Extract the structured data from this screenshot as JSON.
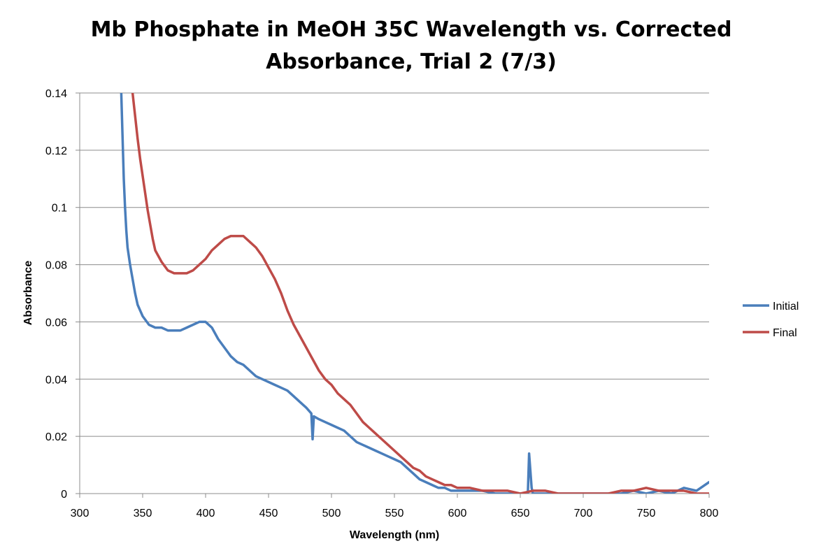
{
  "chart_data": {
    "type": "line",
    "title_lines": [
      "Mb Phosphate in MeOH 35C Wavelength vs. Corrected",
      "Absorbance, Trial 2 (7/3)"
    ],
    "xlabel": "Wavelength (nm)",
    "ylabel": "Absorbance",
    "xlim": [
      300,
      800
    ],
    "ylim": [
      0,
      0.14
    ],
    "x_ticks": [
      300,
      350,
      400,
      450,
      500,
      550,
      600,
      650,
      700,
      750,
      800
    ],
    "y_ticks": [
      0,
      0.02,
      0.04,
      0.06,
      0.08,
      0.1,
      0.12,
      0.14
    ],
    "y_tick_labels": [
      "0",
      "0.02",
      "0.04",
      "0.06",
      "0.08",
      "0.1",
      "0.12",
      "0.14"
    ],
    "grid": "horizontal",
    "legend_position": "right",
    "series": [
      {
        "name": "Initial",
        "color": "#4a7ebb",
        "x": [
          333,
          334,
          335,
          336,
          337,
          338,
          340,
          342,
          344,
          346,
          348,
          350,
          355,
          360,
          365,
          370,
          375,
          380,
          385,
          390,
          395,
          400,
          405,
          410,
          415,
          420,
          425,
          430,
          435,
          440,
          445,
          450,
          455,
          460,
          465,
          470,
          475,
          480,
          484,
          485,
          486,
          490,
          495,
          500,
          505,
          510,
          515,
          520,
          525,
          530,
          535,
          540,
          545,
          550,
          555,
          560,
          565,
          570,
          575,
          580,
          585,
          590,
          595,
          600,
          610,
          620,
          630,
          640,
          650,
          656,
          657,
          658,
          659,
          660,
          670,
          680,
          690,
          700,
          710,
          720,
          730,
          740,
          750,
          760,
          770,
          780,
          790,
          800
        ],
        "y": [
          0.14,
          0.125,
          0.11,
          0.1,
          0.092,
          0.086,
          0.08,
          0.075,
          0.07,
          0.066,
          0.064,
          0.062,
          0.059,
          0.058,
          0.058,
          0.057,
          0.057,
          0.057,
          0.058,
          0.059,
          0.06,
          0.06,
          0.058,
          0.054,
          0.051,
          0.048,
          0.046,
          0.045,
          0.043,
          0.041,
          0.04,
          0.039,
          0.038,
          0.037,
          0.036,
          0.034,
          0.032,
          0.03,
          0.028,
          0.019,
          0.027,
          0.026,
          0.025,
          0.024,
          0.023,
          0.022,
          0.02,
          0.018,
          0.017,
          0.016,
          0.015,
          0.014,
          0.013,
          0.012,
          0.011,
          0.009,
          0.007,
          0.005,
          0.004,
          0.003,
          0.002,
          0.002,
          0.001,
          0.001,
          0.001,
          0.001,
          0.0,
          0.0,
          0.0,
          0.0,
          0.014,
          0.008,
          0.002,
          0.0,
          0.0,
          0.0,
          0.0,
          0.0,
          0.0,
          0.0,
          0.0,
          0.001,
          0.0,
          0.001,
          0.0,
          0.002,
          0.001,
          0.004
        ]
      },
      {
        "name": "Final",
        "color": "#be4b48",
        "x": [
          342,
          344,
          346,
          348,
          350,
          352,
          354,
          356,
          358,
          360,
          365,
          370,
          375,
          380,
          385,
          390,
          395,
          400,
          405,
          410,
          415,
          420,
          425,
          430,
          435,
          440,
          445,
          450,
          455,
          460,
          465,
          470,
          475,
          480,
          485,
          490,
          495,
          500,
          505,
          510,
          515,
          520,
          525,
          530,
          535,
          540,
          545,
          550,
          555,
          560,
          565,
          570,
          575,
          580,
          585,
          590,
          595,
          600,
          610,
          620,
          630,
          640,
          650,
          660,
          670,
          680,
          690,
          700,
          710,
          720,
          730,
          740,
          750,
          760,
          770,
          780,
          790,
          800
        ],
        "y": [
          0.14,
          0.132,
          0.124,
          0.117,
          0.111,
          0.105,
          0.099,
          0.094,
          0.089,
          0.085,
          0.081,
          0.078,
          0.077,
          0.077,
          0.077,
          0.078,
          0.08,
          0.082,
          0.085,
          0.087,
          0.089,
          0.09,
          0.09,
          0.09,
          0.088,
          0.086,
          0.083,
          0.079,
          0.075,
          0.07,
          0.064,
          0.059,
          0.055,
          0.051,
          0.047,
          0.043,
          0.04,
          0.038,
          0.035,
          0.033,
          0.031,
          0.028,
          0.025,
          0.023,
          0.021,
          0.019,
          0.017,
          0.015,
          0.013,
          0.011,
          0.009,
          0.008,
          0.006,
          0.005,
          0.004,
          0.003,
          0.003,
          0.002,
          0.002,
          0.001,
          0.001,
          0.001,
          0.0,
          0.001,
          0.001,
          0.0,
          0.0,
          0.0,
          0.0,
          0.0,
          0.001,
          0.001,
          0.002,
          0.001,
          0.001,
          0.001,
          0.0,
          0.0
        ]
      }
    ]
  }
}
